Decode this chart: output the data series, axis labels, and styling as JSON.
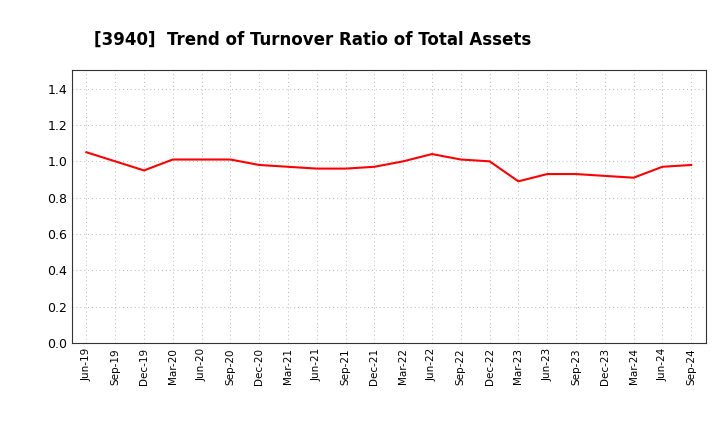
{
  "title": "[3940]  Trend of Turnover Ratio of Total Assets",
  "title_fontsize": 12,
  "line_color": "#FF0000",
  "line_width": 1.5,
  "background_color": "#FFFFFF",
  "grid_color": "#BBBBBB",
  "ylim": [
    0.0,
    1.5
  ],
  "yticks": [
    0.0,
    0.2,
    0.4,
    0.6,
    0.8,
    1.0,
    1.2,
    1.4
  ],
  "x_labels": [
    "Jun-19",
    "Sep-19",
    "Dec-19",
    "Mar-20",
    "Jun-20",
    "Sep-20",
    "Dec-20",
    "Mar-21",
    "Jun-21",
    "Sep-21",
    "Dec-21",
    "Mar-22",
    "Jun-22",
    "Sep-22",
    "Dec-22",
    "Mar-23",
    "Jun-23",
    "Sep-23",
    "Dec-23",
    "Mar-24",
    "Jun-24",
    "Sep-24"
  ],
  "values": [
    1.05,
    1.0,
    0.95,
    1.01,
    1.01,
    1.01,
    0.98,
    0.97,
    0.96,
    0.96,
    0.97,
    1.0,
    1.04,
    1.01,
    1.0,
    0.89,
    0.93,
    0.93,
    0.92,
    0.91,
    0.97,
    0.98
  ]
}
